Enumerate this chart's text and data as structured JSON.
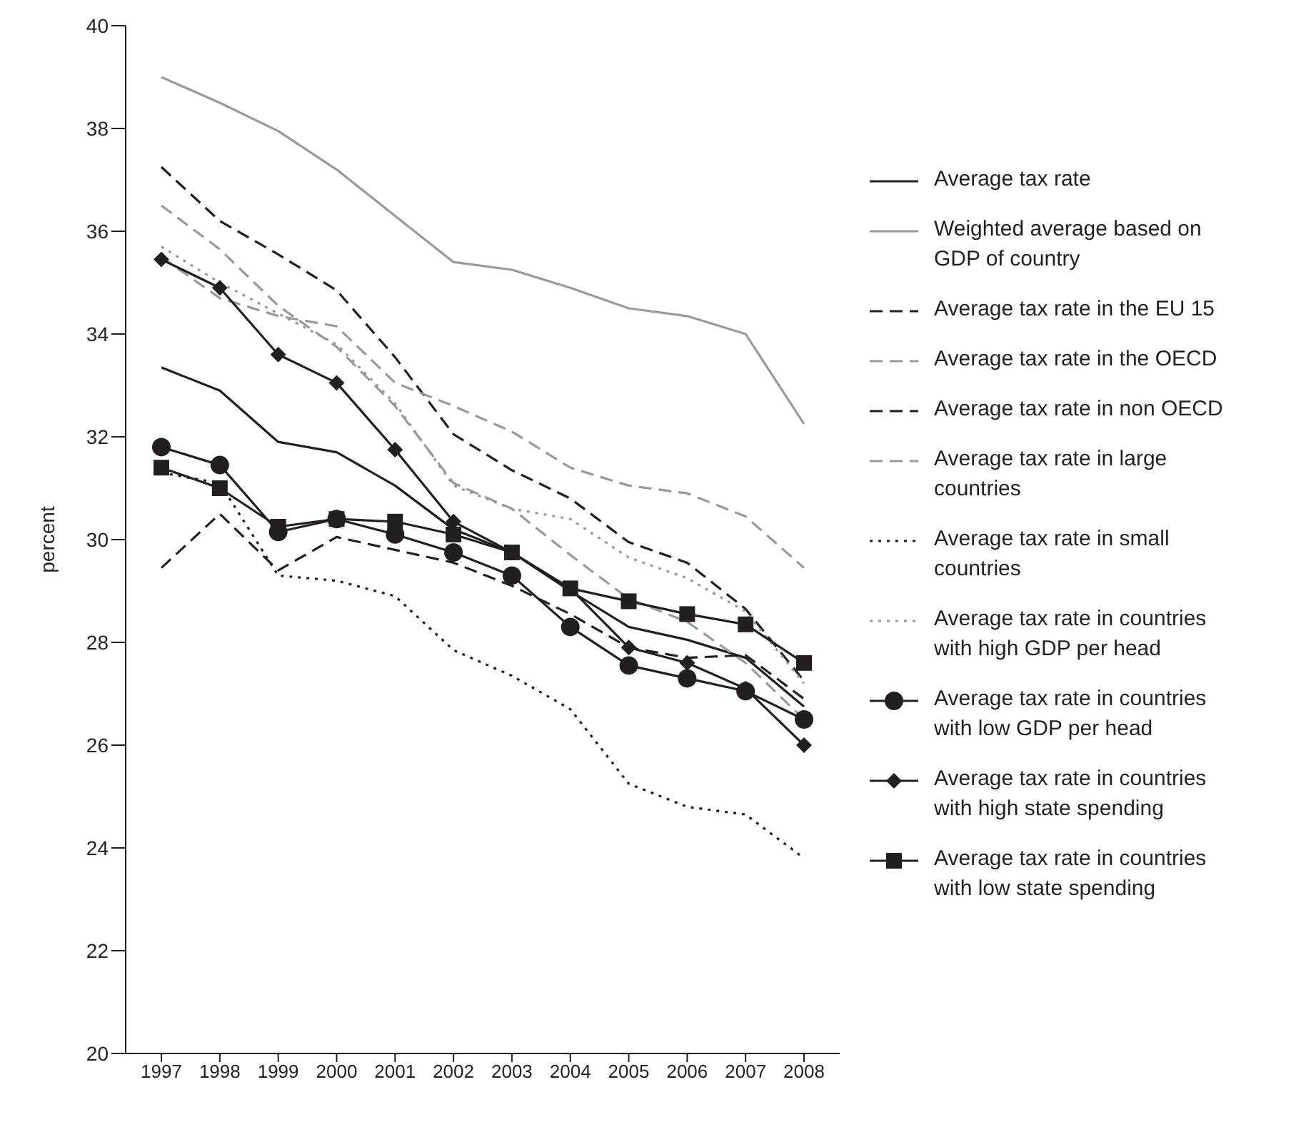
{
  "chart_data": {
    "type": "line",
    "ylabel": "percent",
    "categories": [
      "1997",
      "1998",
      "1999",
      "2000",
      "2001",
      "2002",
      "2003",
      "2004",
      "2005",
      "2006",
      "2007",
      "2008"
    ],
    "ylim": [
      20,
      40
    ],
    "yticks": [
      20,
      22,
      24,
      26,
      28,
      30,
      32,
      34,
      36,
      38,
      40
    ],
    "grid": false,
    "legend": "right",
    "series": [
      {
        "name": "Average tax rate",
        "color": "#231f20",
        "line_style": "solid",
        "marker": "none",
        "values": [
          33.35,
          32.9,
          31.9,
          31.7,
          31.05,
          30.2,
          29.75,
          29.0,
          28.3,
          28.05,
          27.7,
          26.75
        ]
      },
      {
        "name": "Weighted average based on GDP of country",
        "color": "#999999",
        "line_style": "solid",
        "marker": "none",
        "values": [
          39.0,
          38.5,
          37.95,
          37.2,
          36.3,
          35.4,
          35.25,
          34.9,
          34.5,
          34.35,
          34.0,
          32.25
        ]
      },
      {
        "name": "Average tax rate in the EU 15",
        "color": "#231f20",
        "line_style": "dashed",
        "marker": "none",
        "values": [
          37.25,
          36.2,
          35.55,
          34.85,
          33.55,
          32.05,
          31.35,
          30.8,
          29.95,
          29.55,
          28.65,
          27.25
        ]
      },
      {
        "name": "Average tax rate in the OECD",
        "color": "#999999",
        "line_style": "dashed",
        "marker": "none",
        "values": [
          36.5,
          35.65,
          34.55,
          33.75,
          32.6,
          31.1,
          30.6,
          29.7,
          28.85,
          28.4,
          27.6,
          26.5
        ]
      },
      {
        "name": "Average tax rate in non OECD",
        "color": "#231f20",
        "line_style": "dashed",
        "marker": "none",
        "values": [
          29.45,
          30.5,
          29.4,
          30.05,
          29.8,
          29.55,
          29.1,
          28.55,
          27.9,
          27.7,
          27.75,
          26.9
        ]
      },
      {
        "name": "Average tax rate in large countries",
        "color": "#999999",
        "line_style": "dashed",
        "marker": "none",
        "values": [
          35.5,
          34.7,
          34.35,
          34.15,
          33.05,
          32.6,
          32.1,
          31.4,
          31.05,
          30.9,
          30.45,
          29.45
        ]
      },
      {
        "name": "Average tax rate in small countries",
        "color": "#231f20",
        "line_style": "dotted",
        "marker": "none",
        "values": [
          31.3,
          31.1,
          29.3,
          29.2,
          28.9,
          27.85,
          27.35,
          26.7,
          25.25,
          24.8,
          24.65,
          23.8
        ]
      },
      {
        "name": "Average tax rate in countries with high GDP per head",
        "color": "#999999",
        "line_style": "dotted",
        "marker": "none",
        "values": [
          35.7,
          35.0,
          34.4,
          33.8,
          32.65,
          31.05,
          30.6,
          30.4,
          29.65,
          29.25,
          28.6,
          27.2
        ]
      },
      {
        "name": "Average tax rate in countries with low GDP per head",
        "color": "#231f20",
        "line_style": "solid",
        "marker": "circle",
        "values": [
          31.8,
          31.45,
          30.15,
          30.4,
          30.1,
          29.75,
          29.3,
          28.3,
          27.55,
          27.3,
          27.05,
          26.5
        ]
      },
      {
        "name": "Average tax rate in countries with high state spending",
        "color": "#231f20",
        "line_style": "solid",
        "marker": "diamond",
        "values": [
          35.45,
          34.9,
          33.6,
          33.05,
          31.75,
          30.35,
          29.75,
          29.05,
          27.9,
          27.6,
          27.1,
          26.0
        ]
      },
      {
        "name": "Average tax rate in countries with low state spending",
        "color": "#231f20",
        "line_style": "solid",
        "marker": "square",
        "values": [
          31.4,
          31.0,
          30.25,
          30.4,
          30.35,
          30.1,
          29.75,
          29.05,
          28.8,
          28.55,
          28.35,
          27.6
        ]
      }
    ]
  }
}
